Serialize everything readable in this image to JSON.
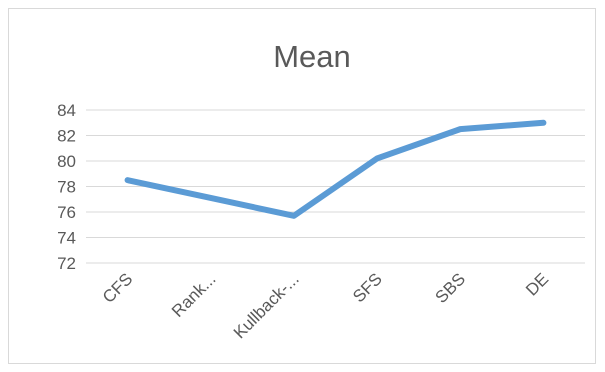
{
  "chart_data": {
    "type": "line",
    "title": "Mean",
    "xlabel": "",
    "ylabel": "",
    "categories": [
      "CFS",
      "Rank...",
      "Kullback-...",
      "SFS",
      "SBS",
      "DE"
    ],
    "series": [
      {
        "values": [
          78.5,
          77.1,
          75.7,
          80.2,
          82.5,
          83.0
        ],
        "color": "#5b9bd5"
      }
    ],
    "yticks": [
      72,
      74,
      76,
      78,
      80,
      82,
      84
    ],
    "ylim": [
      72,
      84
    ],
    "grid": true,
    "legend": "none"
  }
}
